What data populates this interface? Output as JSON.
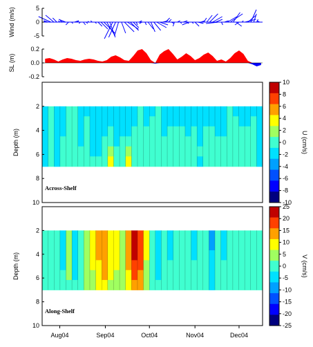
{
  "chart_data": [
    {
      "type": "line",
      "panel": "wind",
      "ylabel": "Wind (m/s)",
      "ylim": [
        -5,
        5
      ],
      "yticks": [
        "5",
        "0",
        "-5"
      ],
      "style": "stick vectors",
      "color": "#0000ff",
      "x": [
        "2004-07-22",
        "2004-07-24",
        "2004-07-26",
        "2004-07-28",
        "2004-07-30",
        "2004-08-01",
        "2004-08-03",
        "2004-08-05",
        "2004-08-07",
        "2004-08-09",
        "2004-08-11",
        "2004-08-13",
        "2004-08-15",
        "2004-08-17",
        "2004-08-19",
        "2004-08-21",
        "2004-08-23",
        "2004-08-25",
        "2004-08-27",
        "2004-08-29",
        "2004-08-31",
        "2004-09-02",
        "2004-09-04",
        "2004-09-06",
        "2004-09-08",
        "2004-09-10",
        "2004-09-12",
        "2004-09-14",
        "2004-09-16",
        "2004-09-18",
        "2004-09-20",
        "2004-09-22",
        "2004-09-24",
        "2004-09-26",
        "2004-09-28",
        "2004-09-30",
        "2004-10-02",
        "2004-10-04",
        "2004-10-06",
        "2004-10-08",
        "2004-10-10",
        "2004-10-12",
        "2004-10-14",
        "2004-10-16",
        "2004-10-18",
        "2004-10-20",
        "2004-10-22",
        "2004-10-24",
        "2004-10-26",
        "2004-10-28",
        "2004-10-30",
        "2004-11-01",
        "2004-11-03",
        "2004-11-05",
        "2004-11-07",
        "2004-11-09",
        "2004-11-11",
        "2004-11-13",
        "2004-11-15",
        "2004-11-17",
        "2004-11-19",
        "2004-11-21",
        "2004-11-23",
        "2004-11-25",
        "2004-11-27",
        "2004-11-29",
        "2004-12-01",
        "2004-12-03",
        "2004-12-05",
        "2004-12-07",
        "2004-12-09",
        "2004-12-11",
        "2004-12-13",
        "2004-12-15"
      ],
      "series": [
        {
          "component": "u",
          "values": [
            -0.5,
            -1.5,
            -4.5,
            -3.0,
            -1.5,
            -0.5,
            -1.0,
            -2.5,
            -1.0,
            0.5,
            1.5,
            0.5,
            -0.5,
            0.8,
            0.5,
            -0.5,
            -0.5,
            0.5,
            1.5,
            2.5,
            4.0,
            3.0,
            2.0,
            -3.0,
            -2.5,
            -1.5,
            1.5,
            3.5,
            4.0,
            3.0,
            2.0,
            0.5,
            1.0,
            -1.0,
            0.5,
            2.0,
            1.5,
            2.5,
            3.5,
            3.0,
            2.0,
            1.5,
            1.0,
            1.0,
            -0.5,
            1.0,
            0.5,
            1.5,
            1.0,
            -2.5,
            0.5,
            1.5,
            2.0,
            1.5,
            1.0,
            2.0,
            3.0,
            3.5,
            2.5,
            -4.5,
            0.5,
            1.5,
            3.5,
            4.5,
            2.5,
            2.0,
            -1.5,
            0.5,
            4.0,
            3.0,
            2.0,
            1.0,
            0.5,
            -1.0
          ]
        },
        {
          "component": "v",
          "values": [
            0.5,
            0.5,
            2.0,
            2.5,
            1.5,
            0.5,
            0.5,
            1.0,
            -1.0,
            -0.5,
            0.5,
            0.5,
            -0.5,
            -1.0,
            -0.5,
            0.3,
            0.5,
            -0.5,
            -1.5,
            -2.5,
            -4.0,
            -5.0,
            -5.5,
            -6.0,
            -5.5,
            -5.0,
            -4.0,
            -3.5,
            -2.5,
            -3.0,
            -2.0,
            -1.0,
            0.5,
            -0.5,
            -1.0,
            -2.5,
            -3.5,
            -3.0,
            -2.0,
            -1.0,
            0.5,
            1.5,
            1.0,
            -0.5,
            -1.5,
            0.5,
            -0.5,
            0.5,
            -0.5,
            -1.0,
            -0.5,
            -1.5,
            -0.5,
            0.5,
            1.5,
            2.5,
            3.0,
            2.0,
            1.0,
            -0.5,
            -1.0,
            0.5,
            2.0,
            3.0,
            3.5,
            -1.5,
            -1.0,
            0.5,
            1.0,
            2.5,
            4.5,
            3.0,
            1.0,
            0.5
          ]
        }
      ]
    },
    {
      "type": "area",
      "panel": "sea-level",
      "ylabel": "SL (m)",
      "ylim": [
        -0.2,
        0.2
      ],
      "yticks": [
        "0.2",
        "0.0",
        "-0.2"
      ],
      "colors": {
        "positive": "#ff0000",
        "negative": "#0000ff"
      },
      "x": [
        "2004-07-22",
        "2004-07-25",
        "2004-07-28",
        "2004-07-31",
        "2004-08-03",
        "2004-08-06",
        "2004-08-09",
        "2004-08-12",
        "2004-08-15",
        "2004-08-18",
        "2004-08-21",
        "2004-08-24",
        "2004-08-27",
        "2004-08-30",
        "2004-09-02",
        "2004-09-05",
        "2004-09-08",
        "2004-09-11",
        "2004-09-14",
        "2004-09-17",
        "2004-09-20",
        "2004-09-23",
        "2004-09-26",
        "2004-09-29",
        "2004-10-02",
        "2004-10-05",
        "2004-10-08",
        "2004-10-11",
        "2004-10-14",
        "2004-10-17",
        "2004-10-20",
        "2004-10-23",
        "2004-10-26",
        "2004-10-29",
        "2004-11-01",
        "2004-11-04",
        "2004-11-07",
        "2004-11-10",
        "2004-11-13",
        "2004-11-16",
        "2004-11-19",
        "2004-11-22",
        "2004-11-25",
        "2004-11-28",
        "2004-12-01",
        "2004-12-04",
        "2004-12-07",
        "2004-12-10",
        "2004-12-13",
        "2004-12-16"
      ],
      "values": [
        0.06,
        0.07,
        0.05,
        0.02,
        0.05,
        0.07,
        0.06,
        0.04,
        0.03,
        0.05,
        0.06,
        0.05,
        0.03,
        0.02,
        0.04,
        0.09,
        0.11,
        0.08,
        0.04,
        0.03,
        0.1,
        0.18,
        0.2,
        0.14,
        0.04,
        -0.01,
        0.12,
        0.17,
        0.2,
        0.13,
        0.05,
        0.09,
        0.14,
        0.1,
        0.04,
        0.07,
        0.12,
        0.15,
        0.1,
        0.03,
        0.05,
        0.02,
        0.07,
        0.14,
        0.18,
        0.13,
        0.03,
        -0.02,
        -0.05,
        -0.03
      ]
    },
    {
      "type": "heatmap",
      "panel": "across-shelf",
      "annotation": "Across-Shelf",
      "ylabel": "Depth (m)",
      "ylim": [
        10,
        0
      ],
      "yticks": [
        "2",
        "4",
        "6",
        "8",
        "10"
      ],
      "depth_range": [
        2,
        7
      ],
      "colorbar": {
        "label": "U (cm/s)",
        "ticks": [
          "10",
          "8",
          "6",
          "4",
          "2",
          "0",
          "-2",
          "-4",
          "-6",
          "-8",
          "-10"
        ]
      },
      "x": [
        "2004-07-23",
        "2004-07-27",
        "2004-07-31",
        "2004-08-04",
        "2004-08-08",
        "2004-08-12",
        "2004-08-16",
        "2004-08-20",
        "2004-08-24",
        "2004-08-28",
        "2004-09-01",
        "2004-09-05",
        "2004-09-09",
        "2004-09-13",
        "2004-09-17",
        "2004-09-21",
        "2004-09-25",
        "2004-09-29",
        "2004-10-03",
        "2004-10-07",
        "2004-10-11",
        "2004-10-15",
        "2004-10-19",
        "2004-10-23",
        "2004-10-27",
        "2004-10-31",
        "2004-11-04",
        "2004-11-08",
        "2004-11-12",
        "2004-11-16",
        "2004-11-20",
        "2004-11-24",
        "2004-11-28",
        "2004-12-02",
        "2004-12-06",
        "2004-12-10",
        "2004-12-14"
      ],
      "y": [
        2,
        3,
        4,
        5,
        6,
        7
      ],
      "z": [
        [
          -1,
          0.5,
          -1,
          -1,
          0.5,
          0.5,
          -1,
          -1,
          -1,
          -1,
          -1,
          -1,
          -1,
          -1,
          -1,
          -1,
          0.5,
          -1,
          -1,
          0.5,
          -1,
          -1,
          -1,
          -1,
          -1,
          -1,
          -1,
          -1,
          -1,
          -1,
          -1,
          0.5,
          -1,
          -1,
          -1,
          -1,
          -1
        ],
        [
          -1,
          0.5,
          -1,
          -1,
          0.5,
          0.5,
          -1,
          0.5,
          -1,
          -1,
          -1,
          -1,
          -1,
          -1,
          -1,
          -1,
          0.5,
          -1,
          0.5,
          0.5,
          -1,
          -1,
          -1,
          -1,
          -1,
          -1,
          -1,
          -1,
          -1,
          -1,
          -1,
          0.5,
          0.5,
          -1,
          -1,
          0.5,
          -1
        ],
        [
          -1,
          0.5,
          -1,
          -1,
          0.5,
          0.5,
          -1,
          0.5,
          -1,
          -1,
          -1,
          0.5,
          -1,
          -1,
          -1,
          0.5,
          0.5,
          0.5,
          0.5,
          0.5,
          -1,
          0.5,
          0.5,
          0.5,
          -1,
          0.5,
          -1,
          0.5,
          0.5,
          -1,
          -1,
          0.5,
          0.5,
          0.5,
          0.5,
          0.5,
          -1
        ],
        [
          -1,
          0.5,
          -1,
          0.5,
          0.5,
          0.5,
          -1,
          0.5,
          -1,
          -1,
          0.5,
          0.5,
          -1,
          0.5,
          0.5,
          0.5,
          0.5,
          0.5,
          0.5,
          0.5,
          0.5,
          0.5,
          0.5,
          0.5,
          0.5,
          0.5,
          -1,
          0.5,
          0.5,
          0.5,
          0.5,
          0.5,
          0.5,
          0.5,
          0.5,
          0.5,
          -1
        ],
        [
          -1,
          0.5,
          -1,
          0.5,
          0.5,
          0.5,
          0.5,
          0.5,
          -1,
          -1,
          0.5,
          2,
          0.5,
          0.5,
          2,
          0.5,
          0.5,
          0.5,
          0.5,
          0.5,
          0.5,
          0.5,
          0.5,
          0.5,
          0.5,
          0.5,
          0.5,
          0.5,
          0.5,
          0.5,
          0.5,
          0.5,
          0.5,
          0.5,
          0.5,
          0.5,
          -1
        ],
        [
          -1,
          0.5,
          -1,
          0.5,
          0.5,
          0.5,
          0.5,
          0.5,
          0.5,
          0.5,
          0.5,
          3,
          0.5,
          0.5,
          3,
          0.5,
          0.5,
          0.5,
          0.5,
          0.5,
          0.5,
          0.5,
          0.5,
          0.5,
          0.5,
          0.5,
          -1,
          0.5,
          0.5,
          0.5,
          0.5,
          0.5,
          0.5,
          0.5,
          0.5,
          0.5,
          -1
        ]
      ]
    },
    {
      "type": "heatmap",
      "panel": "along-shelf",
      "annotation": "Along-Shelf",
      "ylabel": "Depth (m)",
      "ylim": [
        10,
        0
      ],
      "yticks": [
        "2",
        "4",
        "6",
        "8",
        "10"
      ],
      "xticks": [
        "Aug04",
        "Sep04",
        "Oct04",
        "Nov04",
        "Dec04"
      ],
      "depth_range": [
        2,
        7
      ],
      "colorbar": {
        "label": "V (cm/s)",
        "ticks": [
          "25",
          "20",
          "15",
          "10",
          "5",
          "0",
          "-5",
          "-10",
          "-15",
          "-20",
          "-25"
        ]
      },
      "x": [
        "2004-07-23",
        "2004-07-27",
        "2004-07-31",
        "2004-08-04",
        "2004-08-08",
        "2004-08-12",
        "2004-08-16",
        "2004-08-20",
        "2004-08-24",
        "2004-08-28",
        "2004-09-01",
        "2004-09-05",
        "2004-09-09",
        "2004-09-13",
        "2004-09-17",
        "2004-09-21",
        "2004-09-25",
        "2004-09-29",
        "2004-10-03",
        "2004-10-07",
        "2004-10-11",
        "2004-10-15",
        "2004-10-19",
        "2004-10-23",
        "2004-10-27",
        "2004-10-31",
        "2004-11-04",
        "2004-11-08",
        "2004-11-12",
        "2004-11-16",
        "2004-11-20",
        "2004-11-24",
        "2004-11-28",
        "2004-12-02",
        "2004-12-06",
        "2004-12-10",
        "2004-12-14"
      ],
      "y": [
        2,
        3,
        4,
        5,
        6,
        7
      ],
      "z": [
        [
          -2,
          2,
          -2,
          -4,
          4,
          -6,
          2,
          4,
          8,
          12,
          12,
          8,
          8,
          4,
          14,
          22,
          18,
          8,
          2,
          -6,
          -2,
          -4,
          2,
          -2,
          2,
          -4,
          2,
          -2,
          -8,
          2,
          -4,
          2,
          -2,
          2,
          -2,
          2,
          -2
        ],
        [
          -2,
          2,
          -2,
          -4,
          4,
          -6,
          2,
          6,
          8,
          12,
          14,
          8,
          8,
          4,
          14,
          22,
          18,
          8,
          2,
          -6,
          -2,
          -4,
          2,
          -2,
          2,
          -4,
          2,
          -2,
          -8,
          2,
          -4,
          2,
          -2,
          2,
          -2,
          2,
          -2
        ],
        [
          -2,
          2,
          -2,
          -4,
          4,
          -6,
          2,
          6,
          8,
          12,
          14,
          8,
          8,
          4,
          12,
          22,
          18,
          8,
          2,
          -4,
          -2,
          -4,
          2,
          -2,
          2,
          -4,
          2,
          -2,
          -6,
          2,
          -4,
          2,
          -2,
          2,
          -2,
          2,
          -2
        ],
        [
          -2,
          2,
          -2,
          -4,
          4,
          -4,
          2,
          6,
          8,
          10,
          12,
          8,
          8,
          4,
          12,
          20,
          16,
          6,
          2,
          -4,
          -2,
          -2,
          2,
          -2,
          2,
          -2,
          2,
          -2,
          -6,
          2,
          -2,
          2,
          -2,
          2,
          -2,
          2,
          -2
        ],
        [
          -2,
          2,
          -2,
          -2,
          4,
          -4,
          2,
          4,
          6,
          10,
          12,
          8,
          6,
          4,
          10,
          18,
          14,
          6,
          2,
          -4,
          -2,
          -2,
          2,
          -2,
          2,
          -2,
          2,
          -2,
          -4,
          2,
          -2,
          2,
          -2,
          2,
          -2,
          2,
          -2
        ],
        [
          -2,
          2,
          -2,
          -2,
          2,
          -2,
          2,
          4,
          6,
          8,
          10,
          6,
          6,
          4,
          8,
          14,
          12,
          4,
          2,
          -2,
          -2,
          -2,
          2,
          -2,
          2,
          -2,
          2,
          -2,
          -4,
          2,
          -2,
          2,
          -2,
          2,
          -2,
          2,
          -2
        ]
      ]
    }
  ],
  "colormap": [
    "#00007f",
    "#0000ff",
    "#0050ff",
    "#00a0ff",
    "#00e0ff",
    "#40ffd0",
    "#a0ff60",
    "#ffff00",
    "#ffa000",
    "#ff4000",
    "#c00000"
  ]
}
